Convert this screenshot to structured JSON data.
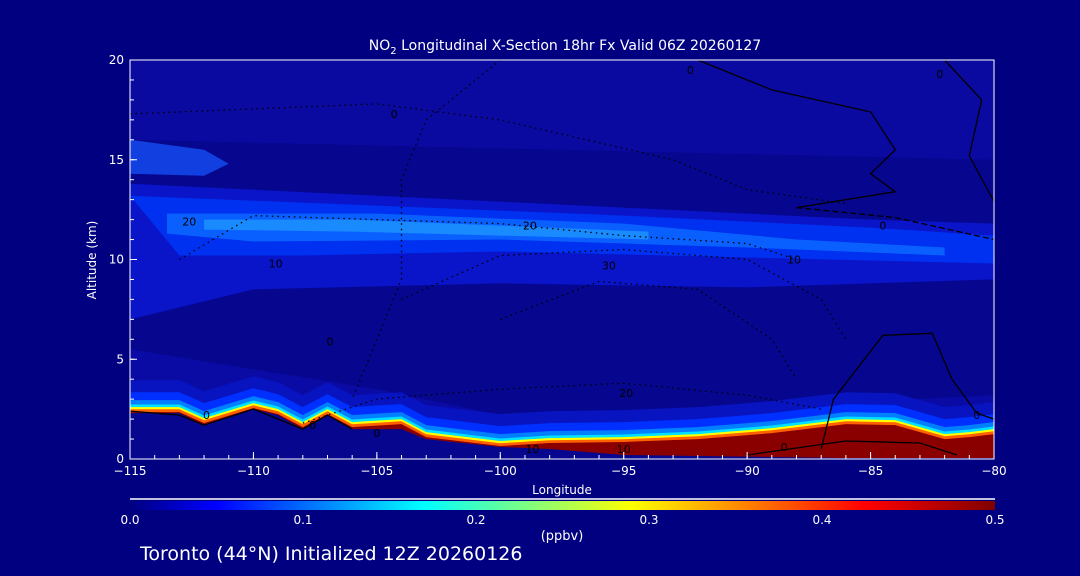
{
  "chart_data": {
    "type": "heatmap",
    "title_prefix": "NO",
    "title_sub": "2",
    "title_rest": " Longitudinal X-Section 18hr  Fx Valid 06Z 20260127",
    "xlabel": "Longitude",
    "ylabel": "Altitude (km)",
    "xlim": [
      -115,
      -80
    ],
    "ylim": [
      0,
      20
    ],
    "x_ticks": [
      -115,
      -110,
      -105,
      -100,
      -95,
      -90,
      -85,
      -80
    ],
    "x_tick_labels": [
      "−115",
      "−110",
      "−105",
      "−100",
      "−95",
      "−90",
      "−85",
      "−80"
    ],
    "y_ticks": [
      0,
      5,
      10,
      15,
      20
    ],
    "y_tick_labels": [
      "0",
      "5",
      "10",
      "15",
      "20"
    ],
    "colorbar": {
      "range": [
        0.0,
        0.5
      ],
      "ticks": [
        "0.0",
        "0.1",
        "0.2",
        "0.3",
        "0.4",
        "0.5"
      ],
      "units": "(ppbv)",
      "colors": [
        "#000080",
        "#0000ff",
        "#00ffff",
        "#ffff00",
        "#ff0000",
        "#800000"
      ]
    },
    "surface_profile": [
      {
        "lon": -115,
        "base": 2.3,
        "top": 2.35
      },
      {
        "lon": -113,
        "base": 2.3,
        "top": 2.35
      },
      {
        "lon": -112,
        "base": 1.7,
        "top": 1.8
      },
      {
        "lon": -110,
        "base": 2.5,
        "top": 2.55
      },
      {
        "lon": -109,
        "base": 2.2,
        "top": 2.25
      },
      {
        "lon": -108,
        "base": 1.5,
        "top": 1.6
      },
      {
        "lon": -107,
        "base": 2.2,
        "top": 2.25
      },
      {
        "lon": -106,
        "base": 1.5,
        "top": 1.6
      },
      {
        "lon": -104,
        "base": 1.5,
        "top": 1.75
      },
      {
        "lon": -103,
        "base": 1.0,
        "top": 1.1
      },
      {
        "lon": -100,
        "base": 0.6,
        "top": 0.65
      },
      {
        "lon": -98,
        "base": 0.5,
        "top": 0.8
      },
      {
        "lon": -95,
        "base": 0.2,
        "top": 0.85
      },
      {
        "lon": -92,
        "base": 0.15,
        "top": 1.0
      },
      {
        "lon": -89,
        "base": 0.1,
        "top": 1.3
      },
      {
        "lon": -86,
        "base": 0.05,
        "top": 1.75
      },
      {
        "lon": -84,
        "base": 0.05,
        "top": 1.7
      },
      {
        "lon": -82,
        "base": 0.05,
        "top": 1.0
      },
      {
        "lon": -81,
        "base": 0.05,
        "top": 1.1
      },
      {
        "lon": -80,
        "base": 0.05,
        "top": 1.25
      }
    ],
    "contour_labels": [
      {
        "text": "0",
        "lon": -111.9,
        "alt": 2.2
      },
      {
        "text": "0",
        "lon": -107.6,
        "alt": 1.7
      },
      {
        "text": "0",
        "lon": -105.0,
        "alt": 1.3
      },
      {
        "text": "10",
        "lon": -98.7,
        "alt": 0.5
      },
      {
        "text": "10",
        "lon": -95.0,
        "alt": 0.5
      },
      {
        "text": "0",
        "lon": -88.5,
        "alt": 0.6
      },
      {
        "text": "20",
        "lon": -94.9,
        "alt": 3.3
      },
      {
        "text": "20",
        "lon": -112.6,
        "alt": 11.9
      },
      {
        "text": "20",
        "lon": -98.8,
        "alt": 11.7
      },
      {
        "text": "30",
        "lon": -95.6,
        "alt": 9.7
      },
      {
        "text": "10",
        "lon": -88.1,
        "alt": 10.0
      },
      {
        "text": "0",
        "lon": -84.5,
        "alt": 11.7
      },
      {
        "text": "0",
        "lon": -80.7,
        "alt": 2.2
      },
      {
        "text": "10",
        "lon": -109.1,
        "alt": 9.8
      },
      {
        "text": "0",
        "lon": -106.9,
        "alt": 5.9
      },
      {
        "text": "0",
        "lon": -104.3,
        "alt": 17.3
      },
      {
        "text": "0",
        "lon": -92.3,
        "alt": 19.5
      },
      {
        "text": "0",
        "lon": -82.2,
        "alt": 19.3
      }
    ]
  },
  "footer": "Toronto (44°N) Initialized 12Z 20260126"
}
